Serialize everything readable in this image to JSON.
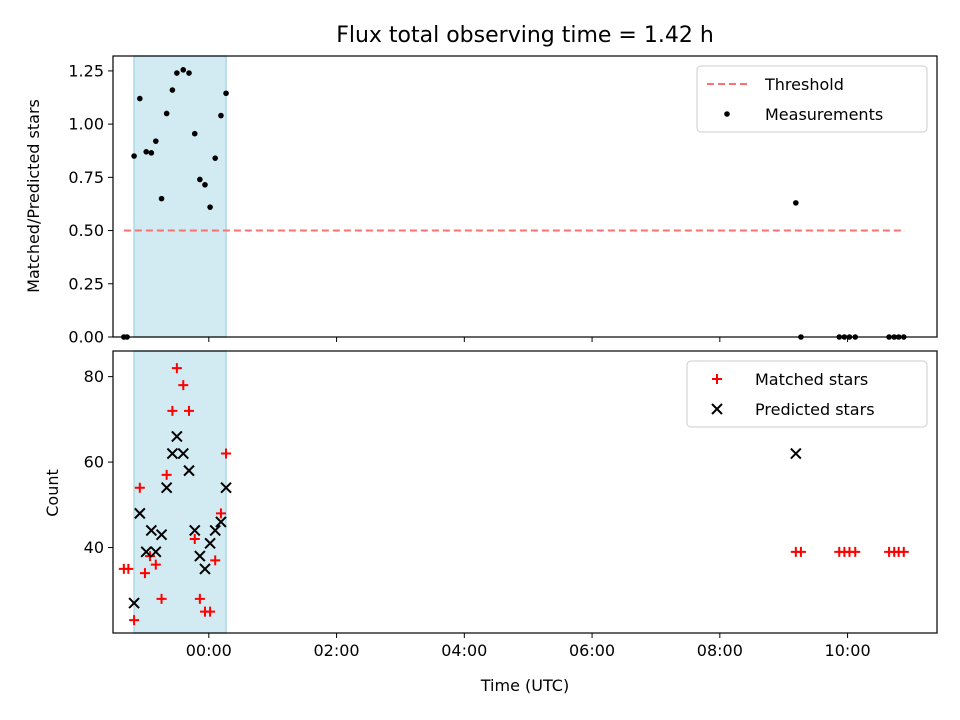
{
  "figure": {
    "title": "Flux total observing time = 1.42 h",
    "xlabel": "Time (UTC)"
  },
  "chart_data": [
    {
      "type": "scatter",
      "ylabel": "Matched/Predicted stars",
      "xlim": [
        "-1.5",
        "11.4"
      ],
      "ylim": [
        0,
        1.32
      ],
      "yticks": [
        "0.00",
        "0.25",
        "0.50",
        "0.75",
        "1.00",
        "1.25"
      ],
      "xticks": [
        "00:00",
        "02:00",
        "04:00",
        "06:00",
        "08:00",
        "10:00"
      ],
      "shade": {
        "from": -1.17,
        "to": 0.27,
        "color": "#add8e6"
      },
      "threshold": {
        "name": "Threshold",
        "value": 0.5,
        "from": -1.33,
        "to": 10.9,
        "color": "#ff7070"
      },
      "legend": {
        "placement": "top-right",
        "entries": [
          "Threshold",
          "Measurements"
        ]
      },
      "series": [
        {
          "name": "Measurements",
          "marker": "dot",
          "color": "#000000",
          "points": [
            [
              -1.33,
              0.0
            ],
            [
              -1.28,
              0.0
            ],
            [
              -1.17,
              0.85
            ],
            [
              -1.08,
              1.12
            ],
            [
              -0.98,
              0.87
            ],
            [
              -0.9,
              0.865
            ],
            [
              -0.83,
              0.92
            ],
            [
              -0.74,
              0.65
            ],
            [
              -0.66,
              1.05
            ],
            [
              -0.57,
              1.16
            ],
            [
              -0.5,
              1.24
            ],
            [
              -0.4,
              1.255
            ],
            [
              -0.31,
              1.24
            ],
            [
              -0.22,
              0.955
            ],
            [
              -0.14,
              0.74
            ],
            [
              -0.06,
              0.715
            ],
            [
              0.02,
              0.61
            ],
            [
              0.1,
              0.84
            ],
            [
              0.19,
              1.04
            ],
            [
              0.27,
              1.145
            ],
            [
              9.19,
              0.63
            ],
            [
              9.27,
              0.0
            ],
            [
              9.87,
              0.0
            ],
            [
              9.95,
              0.0
            ],
            [
              10.03,
              0.0
            ],
            [
              10.12,
              0.0
            ],
            [
              10.65,
              0.0
            ],
            [
              10.73,
              0.0
            ],
            [
              10.8,
              0.0
            ],
            [
              10.88,
              0.0
            ]
          ]
        }
      ]
    },
    {
      "type": "scatter",
      "ylabel": "Count",
      "xlim": [
        "-1.5",
        "11.4"
      ],
      "ylim": [
        20,
        86
      ],
      "yticks": [
        "40",
        "60",
        "80"
      ],
      "xticks": [
        "00:00",
        "02:00",
        "04:00",
        "06:00",
        "08:00",
        "10:00"
      ],
      "shade": {
        "from": -1.17,
        "to": 0.27,
        "color": "#add8e6"
      },
      "legend": {
        "placement": "top-right",
        "entries": [
          "Matched stars",
          "Predicted stars"
        ]
      },
      "series": [
        {
          "name": "Matched stars",
          "marker": "plus",
          "color": "#ff0000",
          "points": [
            [
              -1.33,
              35
            ],
            [
              -1.26,
              35
            ],
            [
              -1.17,
              23
            ],
            [
              -1.08,
              54
            ],
            [
              -1.0,
              34
            ],
            [
              -0.92,
              38
            ],
            [
              -0.83,
              36
            ],
            [
              -0.74,
              28
            ],
            [
              -0.66,
              57
            ],
            [
              -0.57,
              72
            ],
            [
              -0.5,
              82
            ],
            [
              -0.4,
              78
            ],
            [
              -0.31,
              72
            ],
            [
              -0.22,
              42
            ],
            [
              -0.14,
              28
            ],
            [
              -0.06,
              25
            ],
            [
              0.02,
              25
            ],
            [
              0.1,
              37
            ],
            [
              0.19,
              48
            ],
            [
              0.27,
              62
            ],
            [
              9.19,
              39
            ],
            [
              9.27,
              39
            ],
            [
              9.87,
              39
            ],
            [
              9.95,
              39
            ],
            [
              10.03,
              39
            ],
            [
              10.12,
              39
            ],
            [
              10.65,
              39
            ],
            [
              10.73,
              39
            ],
            [
              10.8,
              39
            ],
            [
              10.88,
              39
            ]
          ]
        },
        {
          "name": "Predicted stars",
          "marker": "x",
          "color": "#000000",
          "points": [
            [
              -1.17,
              27
            ],
            [
              -1.08,
              48
            ],
            [
              -0.98,
              39
            ],
            [
              -0.9,
              44
            ],
            [
              -0.83,
              39
            ],
            [
              -0.74,
              43
            ],
            [
              -0.66,
              54
            ],
            [
              -0.57,
              62
            ],
            [
              -0.5,
              66
            ],
            [
              -0.4,
              62
            ],
            [
              -0.31,
              58
            ],
            [
              -0.22,
              44
            ],
            [
              -0.14,
              38
            ],
            [
              -0.06,
              35
            ],
            [
              0.02,
              41
            ],
            [
              0.1,
              44
            ],
            [
              0.19,
              46
            ],
            [
              0.27,
              54
            ],
            [
              9.19,
              62
            ]
          ]
        }
      ]
    }
  ]
}
